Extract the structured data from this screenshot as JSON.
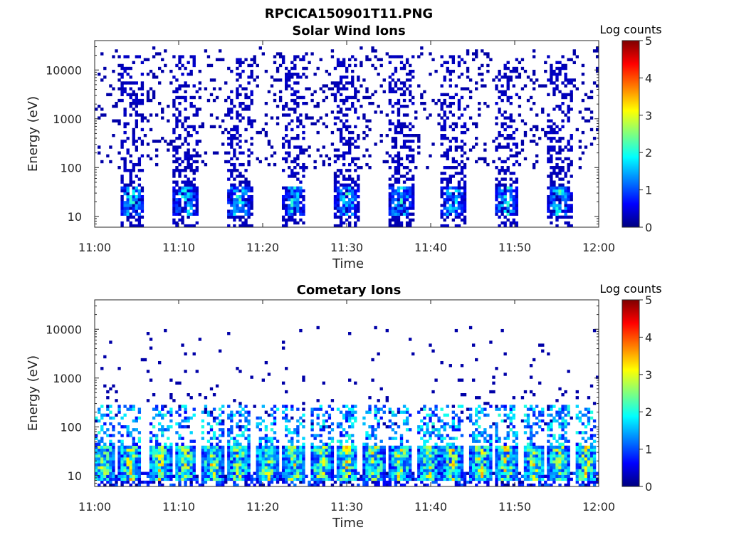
{
  "figure_title": "RPCICA150901T11.PNG",
  "colorbar_colors": [
    "#00007f",
    "#0000ff",
    "#007fff",
    "#00ffff",
    "#7fff7f",
    "#ffff00",
    "#ff7f00",
    "#ff0000",
    "#7f0000"
  ],
  "chart_data": [
    {
      "type": "heatmap",
      "title": "Solar Wind Ions",
      "xlabel": "Time",
      "ylabel": "Energy (eV)",
      "x_ticks": [
        "11:00",
        "11:10",
        "11:20",
        "11:30",
        "11:40",
        "11:50",
        "12:00"
      ],
      "x_range": [
        "11:00",
        "12:00"
      ],
      "y_scale": "log",
      "y_ticks": [
        "10",
        "100",
        "1000",
        "10000"
      ],
      "y_range": [
        6,
        40000
      ],
      "colorbar_label": "Log counts",
      "colorbar_ticks": [
        "0",
        "1",
        "2",
        "3",
        "4",
        "5"
      ],
      "colorbar_range": [
        0,
        5
      ],
      "burst_centers_min": [
        4.5,
        10.8,
        17.2,
        23.7,
        30.0,
        36.4,
        42.6,
        49.0,
        55.3
      ],
      "sparse_energy_range_eV": [
        100,
        30000
      ],
      "peak_energy_range_eV": [
        10,
        40
      ],
      "peak_log_counts": 2.5,
      "background_log_counts": 0.2
    },
    {
      "type": "heatmap",
      "title": "Cometary Ions",
      "xlabel": "Time",
      "ylabel": "Energy (eV)",
      "x_ticks": [
        "11:00",
        "11:10",
        "11:20",
        "11:30",
        "11:40",
        "11:50",
        "12:00"
      ],
      "x_range": [
        "11:00",
        "12:00"
      ],
      "y_scale": "log",
      "y_ticks": [
        "10",
        "100",
        "1000",
        "10000"
      ],
      "y_range": [
        6,
        40000
      ],
      "colorbar_label": "Log counts",
      "colorbar_ticks": [
        "0",
        "1",
        "2",
        "3",
        "4",
        "5"
      ],
      "colorbar_range": [
        0,
        5
      ],
      "burst_centers_min": [
        1.0,
        4.2,
        7.8,
        10.8,
        14.0,
        17.2,
        20.5,
        23.7,
        27.0,
        30.0,
        33.3,
        36.4,
        39.8,
        42.6,
        46.0,
        49.0,
        52.3,
        55.3,
        58.5
      ],
      "peak_energy_range_eV": [
        8,
        40
      ],
      "peak_log_counts": 3.8,
      "sparse_energy_range_eV": [
        100,
        12000
      ],
      "background_log_counts": 0.2
    }
  ]
}
